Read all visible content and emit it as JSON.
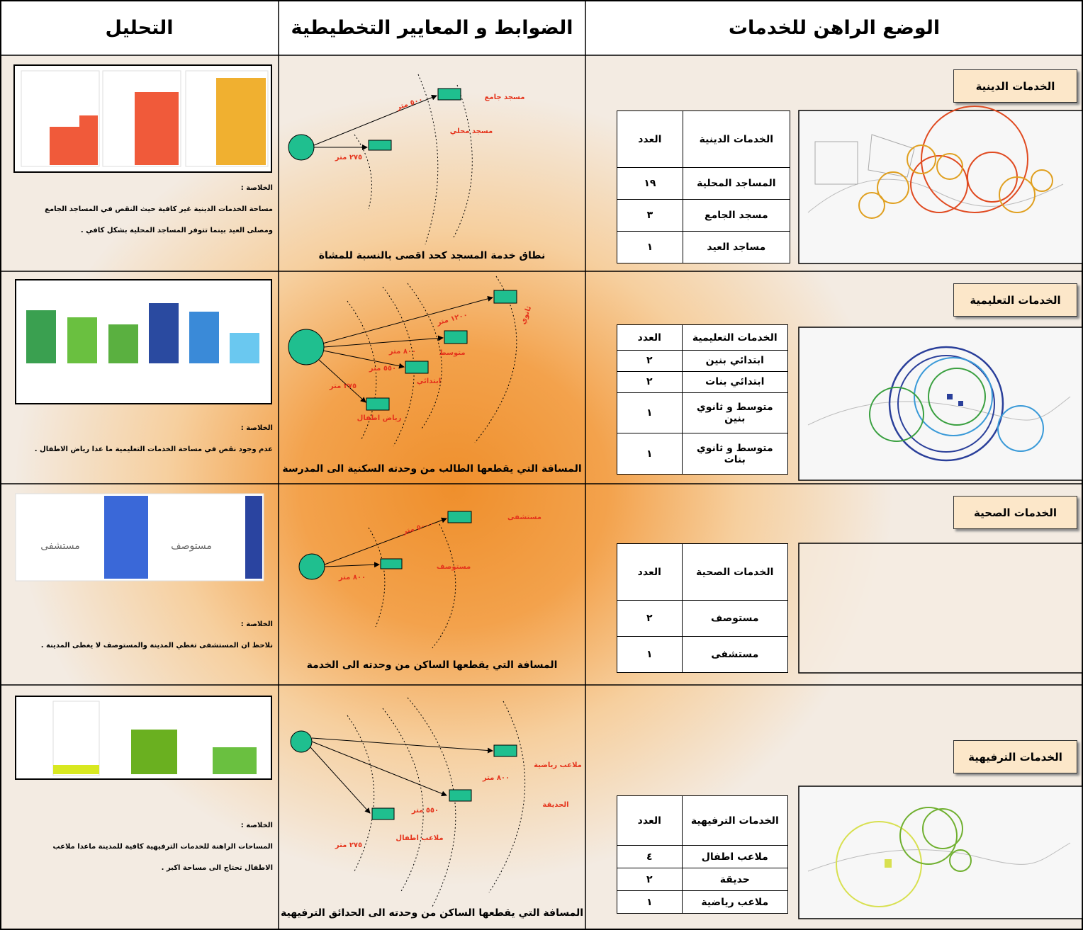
{
  "header": {
    "current": "الوضع الراهن للخدمات",
    "standards": "الضوابط و المعايير التخطيطية",
    "analysis": "التحليل"
  },
  "sections": [
    {
      "title": "الخدمات الدينية",
      "table": {
        "columns": [
          "الخدمات الدينية",
          "العدد"
        ],
        "rows": [
          [
            "المساجد المحلية",
            "١٩"
          ],
          [
            "مسجد الجامع",
            "٣"
          ],
          [
            "مساجد العيد",
            "١"
          ]
        ]
      },
      "diagram": {
        "labels": [
          "مسجد جامع",
          "مسجد محلي",
          "٥٠٠ متر",
          "٢٧٥ متر"
        ],
        "caption": "نطاق خدمة المسجد كحد اقصى بالنسبة للمشاة"
      },
      "analysis": {
        "summary_title": "الخلاصة :",
        "summary_lines": [
          "مساحة الخدمات الدينية غير كافية حيث النقص في المساجد الجامع",
          "ومصلى العيد بينما تتوفر المساجد المحلية بشكل كافي ."
        ]
      }
    },
    {
      "title": "الخدمات التعليمية",
      "table": {
        "columns": [
          "الخدمات التعليمية",
          "العدد"
        ],
        "rows": [
          [
            "ابتدائي بنين",
            "٢"
          ],
          [
            "ابتدائي بنات",
            "٢"
          ],
          [
            "متوسط و ثانوي بنين",
            "١"
          ],
          [
            "متوسط و ثانوي بنات",
            "١"
          ]
        ]
      },
      "diagram": {
        "labels": [
          "ثانوي",
          "١٢٠٠ متر",
          "متوسط",
          "٨٠٠ متر",
          "٥٥٠ متر",
          "ابتدائي",
          "٢٧٥ متر",
          "رياض اطفال"
        ],
        "caption": "المسافة التي يقطعها الطالب من وحدته السكنية الى المدرسة"
      },
      "analysis": {
        "summary_title": "الخلاصة :",
        "summary_lines": [
          "عدم وجود نقص في مساحة الخدمات التعليمية ما عدا رياض الاطفال ."
        ]
      }
    },
    {
      "title": "الخدمات الصحية",
      "table": {
        "columns": [
          "الخدمات الصحية",
          "العدد"
        ],
        "rows": [
          [
            "مستوصف",
            "٢"
          ],
          [
            "مستشفى",
            "١"
          ]
        ]
      },
      "diagram": {
        "labels": [
          "مستشفى",
          "٥٠٠٠ متر",
          "مستوصف",
          "٨٠٠ متر"
        ],
        "caption": "المسافة التي يقطعها الساكن من وحدته الى الخدمة"
      },
      "analysis": {
        "thumb_labels": [
          "مستشفى",
          "مستوصف"
        ],
        "summary_title": "الخلاصة :",
        "summary_lines": [
          "نلاحظ ان المستشفى تغطي المدينة والمستوصف لا يغطى المدينة ."
        ]
      }
    },
    {
      "title": "الخدمات الترفيهية",
      "table": {
        "columns": [
          "الخدمات الترفيهية",
          "العدد"
        ],
        "rows": [
          [
            "ملاعب اطفال",
            "٤"
          ],
          [
            "حديقة",
            "٢"
          ],
          [
            "ملاعب رياضية",
            "١"
          ]
        ]
      },
      "diagram": {
        "labels": [
          "ملاعب رياضية",
          "٨٠٠ متر",
          "الحديقة",
          "٥٥٠ متر",
          "ملاعب اطفال",
          "٢٧٥ متر"
        ],
        "caption": "المسافة التي يقطعها الساكن من وحدته الى الحدائق الترفيهية"
      },
      "analysis": {
        "summary_title": "الخلاصة :",
        "summary_lines": [
          "المساحات الراهنة للخدمات الترفيهية كافية للمدينة ماعدا ملاعب",
          "الاطفال تحتاج الى مساحة اكبر ."
        ]
      }
    }
  ]
}
